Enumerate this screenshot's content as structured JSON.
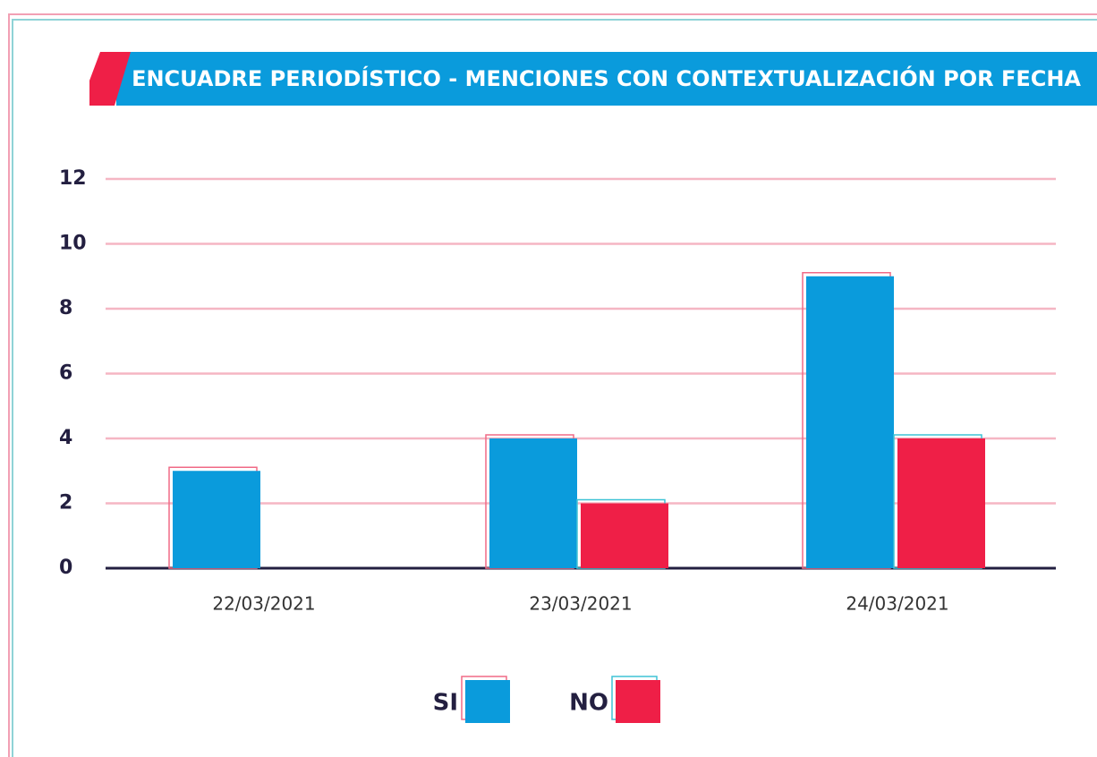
{
  "chart_data": {
    "type": "bar",
    "title": "ENCUADRE PERIODÍSTICO - MENCIONES CON CONTEXTUALIZACIÓN POR FECHA",
    "categories": [
      "22/03/2021",
      "23/03/2021",
      "24/03/2021"
    ],
    "series": [
      {
        "name": "SI",
        "color": "#0a9bdc",
        "values": [
          3,
          4,
          9
        ]
      },
      {
        "name": "NO",
        "color": "#ef1f47",
        "values": [
          0,
          2,
          4
        ]
      }
    ],
    "ylim": [
      0,
      12
    ],
    "yticks": [
      0,
      2,
      4,
      6,
      8,
      10,
      12
    ],
    "grid": true
  }
}
